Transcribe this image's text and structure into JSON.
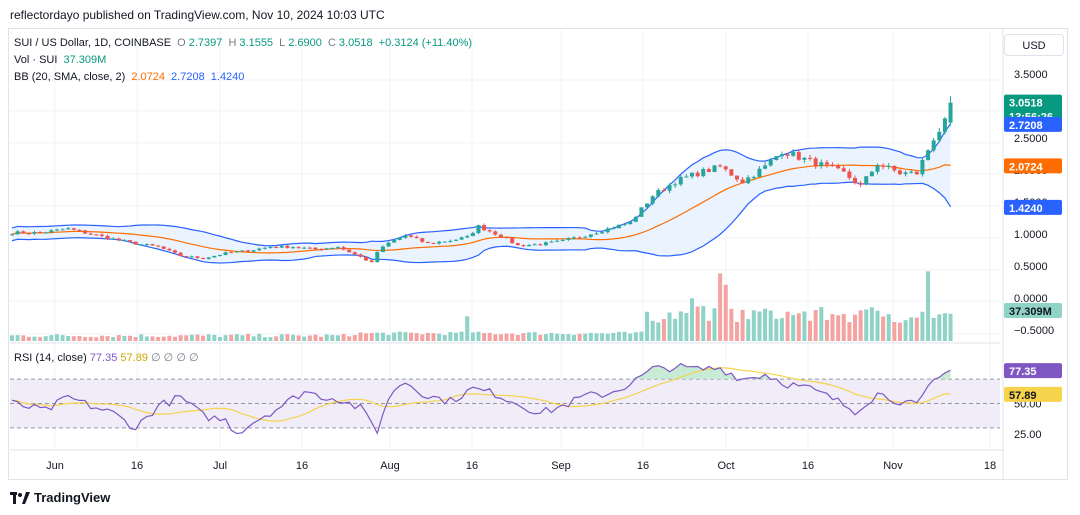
{
  "publisher": "reflectordayo published on TradingView.com, Nov 10, 2024 10:03 UTC",
  "legend": {
    "symbol": "SUI / US Dollar, 1D, COINBASE",
    "o_label": "O",
    "o": "2.7397",
    "h_label": "H",
    "h": "3.1555",
    "l_label": "L",
    "l": "2.6900",
    "c_label": "C",
    "c": "3.0518",
    "change": "+0.3124 (+11.40%)",
    "vol_label": "Vol · SUI",
    "vol": "37.309M",
    "bb_label": "BB (20, SMA, close, 2)",
    "bb_mid": "2.0724",
    "bb_up": "2.7208",
    "bb_low": "1.4240"
  },
  "rsi_legend": {
    "label": "RSI (14, close)",
    "rsi": "77.35",
    "ma": "57.89",
    "extra": [
      "∅",
      "∅",
      "∅",
      "∅"
    ]
  },
  "currency": "USD",
  "brand": "TradingView",
  "price_badges": {
    "close": "3.0518",
    "countdown": "13:56:26",
    "bb_up": "2.7208",
    "bb_mid": "2.0724",
    "bb_low": "1.4240",
    "vol": "37.309M",
    "rsi": "77.35",
    "rsi_ma": "57.89"
  },
  "colors": {
    "up": "#26a69a",
    "down": "#ef5350",
    "vol_up": "#8fd3c7",
    "vol_down": "#f4a3a2",
    "bb_band": "#2962ff",
    "bb_basis": "#ff6d00",
    "bb_fill": "#e3effd",
    "rsi": "#7e57c2",
    "rsi_ma": "#f5d34a",
    "rsi_bg": "#f0edf9"
  },
  "chart_data": [
    {
      "type": "candlestick",
      "title": "SUI / US Dollar, 1D, COINBASE",
      "x_ticks": [
        "Jun",
        "16",
        "Jul",
        "16",
        "Aug",
        "16",
        "Sep",
        "16",
        "Oct",
        "16",
        "Nov",
        "18"
      ],
      "y_ticks": [
        "3.5000",
        "3.0000",
        "2.5000",
        "2.0000",
        "1.5000",
        "1.0000",
        "0.5000",
        "0.0000",
        "−0.5000"
      ],
      "close_anchors": [
        [
          0,
          1.02
        ],
        [
          5,
          1.02
        ],
        [
          10,
          1.08
        ],
        [
          14,
          1.0
        ],
        [
          18,
          0.92
        ],
        [
          22,
          0.85
        ],
        [
          26,
          0.8
        ],
        [
          30,
          0.66
        ],
        [
          34,
          0.62
        ],
        [
          38,
          0.7
        ],
        [
          42,
          0.74
        ],
        [
          46,
          0.8
        ],
        [
          50,
          0.8
        ],
        [
          54,
          0.76
        ],
        [
          58,
          0.8
        ],
        [
          60,
          0.72
        ],
        [
          62,
          0.64
        ],
        [
          64,
          0.55
        ],
        [
          65,
          0.72
        ],
        [
          67,
          0.86
        ],
        [
          70,
          0.98
        ],
        [
          74,
          0.85
        ],
        [
          78,
          0.9
        ],
        [
          81,
          0.95
        ],
        [
          83,
          1.12
        ],
        [
          87,
          0.97
        ],
        [
          90,
          0.82
        ],
        [
          94,
          0.84
        ],
        [
          98,
          0.89
        ],
        [
          102,
          0.98
        ],
        [
          106,
          1.08
        ],
        [
          110,
          1.18
        ],
        [
          114,
          1.6
        ],
        [
          118,
          1.82
        ],
        [
          122,
          1.95
        ],
        [
          126,
          2.05
        ],
        [
          130,
          1.82
        ],
        [
          134,
          2.05
        ],
        [
          137,
          2.3
        ],
        [
          140,
          2.2
        ],
        [
          144,
          2.08
        ],
        [
          148,
          1.95
        ],
        [
          151,
          1.75
        ],
        [
          154,
          2.1
        ],
        [
          158,
          1.95
        ],
        [
          161,
          1.95
        ],
        [
          164,
          2.5
        ],
        [
          166,
          2.74
        ],
        [
          167,
          3.05
        ]
      ],
      "last_candle": {
        "open": 2.7397,
        "high": 3.1555,
        "low": 2.69,
        "close": 3.0518
      },
      "bollinger": {
        "period": 20,
        "upper_last": 2.7208,
        "basis_last": 2.0724,
        "lower_last": 1.424
      }
    },
    {
      "type": "bar",
      "title": "Vol · SUI",
      "last_value": "37.309M",
      "peaks": [
        [
          81,
          0.55
        ],
        [
          113,
          0.65
        ],
        [
          121,
          0.95
        ],
        [
          126,
          1.5
        ],
        [
          127,
          1.25
        ],
        [
          163,
          1.55
        ]
      ]
    },
    {
      "type": "line",
      "title": "RSI (14, close)",
      "y_ticks": [
        "50.00",
        "25.00"
      ],
      "levels": [
        70,
        50,
        30
      ],
      "rsi_anchors": [
        [
          0,
          50
        ],
        [
          6,
          44
        ],
        [
          10,
          55
        ],
        [
          14,
          48
        ],
        [
          18,
          42
        ],
        [
          22,
          30
        ],
        [
          26,
          48
        ],
        [
          30,
          55
        ],
        [
          34,
          40
        ],
        [
          38,
          36
        ],
        [
          40,
          26
        ],
        [
          44,
          38
        ],
        [
          48,
          48
        ],
        [
          52,
          60
        ],
        [
          55,
          56
        ],
        [
          58,
          54
        ],
        [
          62,
          46
        ],
        [
          64,
          34
        ],
        [
          65,
          28
        ],
        [
          66,
          42
        ],
        [
          68,
          62
        ],
        [
          70,
          68
        ],
        [
          74,
          56
        ],
        [
          78,
          52
        ],
        [
          82,
          62
        ],
        [
          86,
          58
        ],
        [
          90,
          50
        ],
        [
          94,
          42
        ],
        [
          98,
          48
        ],
        [
          102,
          56
        ],
        [
          106,
          58
        ],
        [
          110,
          66
        ],
        [
          114,
          78
        ],
        [
          118,
          80
        ],
        [
          122,
          78
        ],
        [
          126,
          79
        ],
        [
          130,
          70
        ],
        [
          134,
          74
        ],
        [
          138,
          66
        ],
        [
          142,
          62
        ],
        [
          146,
          54
        ],
        [
          150,
          44
        ],
        [
          154,
          58
        ],
        [
          158,
          52
        ],
        [
          161,
          48
        ],
        [
          164,
          68
        ],
        [
          167,
          77.35
        ]
      ],
      "last_rsi": 77.35,
      "last_ma": 57.89
    }
  ]
}
